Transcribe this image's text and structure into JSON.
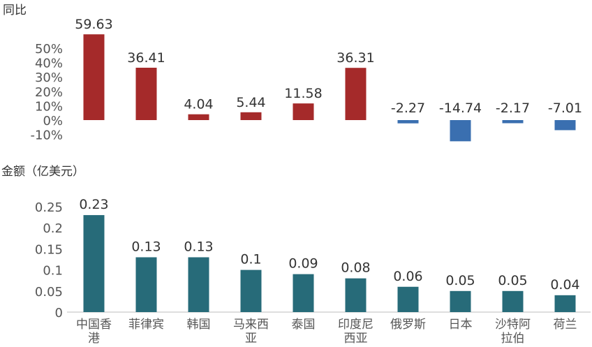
{
  "chart_data": [
    {
      "type": "bar",
      "ylabel": "同比",
      "categories": [
        "中国香港",
        "菲律宾",
        "韩国",
        "马来西亚",
        "泰国",
        "印度尼西亚",
        "俄罗斯",
        "日本",
        "沙特阿拉伯",
        "荷兰"
      ],
      "values": [
        59.63,
        36.41,
        4.04,
        5.44,
        11.58,
        36.31,
        -2.27,
        -14.74,
        -2.17,
        -7.01
      ],
      "data_labels": [
        "59.63",
        "36.41",
        "4.04",
        "5.44",
        "11.58",
        "36.31",
        "-2.27",
        "-14.74",
        "-2.17",
        "-7.01"
      ],
      "y_ticks": [
        "50%",
        "40%",
        "30%",
        "20%",
        "10%",
        "0%",
        "-10%"
      ],
      "ylim": [
        -15,
        60
      ],
      "colors": {
        "positive": "#A52A2A",
        "negative": "#3A6FB0"
      },
      "grid": false
    },
    {
      "type": "bar",
      "ylabel": "金额（亿美元）",
      "categories": [
        "中国香港",
        "菲律宾",
        "韩国",
        "马来西亚",
        "泰国",
        "印度尼西亚",
        "俄罗斯",
        "日本",
        "沙特阿拉伯",
        "荷兰"
      ],
      "values": [
        0.23,
        0.13,
        0.13,
        0.1,
        0.09,
        0.08,
        0.06,
        0.05,
        0.05,
        0.04
      ],
      "data_labels": [
        "0.23",
        "0.13",
        "0.13",
        "0.1",
        "0.09",
        "0.08",
        "0.06",
        "0.05",
        "0.05",
        "0.04"
      ],
      "y_ticks": [
        "0.25",
        "0.2",
        "0.15",
        "0.1",
        "0.05",
        "0"
      ],
      "ylim": [
        0,
        0.25
      ],
      "colors": {
        "bar": "#276B79"
      },
      "grid": false
    }
  ],
  "x_labels": [
    [
      "中国香",
      "港"
    ],
    [
      "菲律宾"
    ],
    [
      "韩国"
    ],
    [
      "马来西",
      "亚"
    ],
    [
      "泰国"
    ],
    [
      "印度尼",
      "西亚"
    ],
    [
      "俄罗斯"
    ],
    [
      "日本"
    ],
    [
      "沙特阿",
      "拉伯"
    ],
    [
      "荷兰"
    ]
  ]
}
